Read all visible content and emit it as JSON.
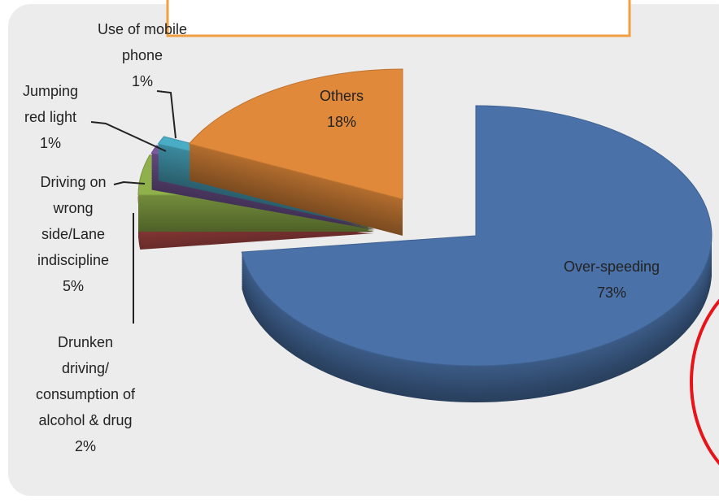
{
  "chart_data": {
    "type": "pie3d",
    "categories": [
      "Over-speeding",
      "Drunken\ndriving/\nconsumption of\nalcohol & drug",
      "Driving on\nwrong\nside/Lane\nindiscipline",
      "Jumping\nred light",
      "Use of mobile\nphone",
      "Others"
    ],
    "values": [
      73,
      2,
      5,
      1,
      1,
      18
    ],
    "value_labels": [
      "73%",
      "2%",
      "5%",
      "1%",
      "1%",
      "18%"
    ],
    "colors": [
      "#4a72a8",
      "#c0504d",
      "#8fb04a",
      "#7a5a9e",
      "#4bacc6",
      "#e0893a"
    ]
  }
}
